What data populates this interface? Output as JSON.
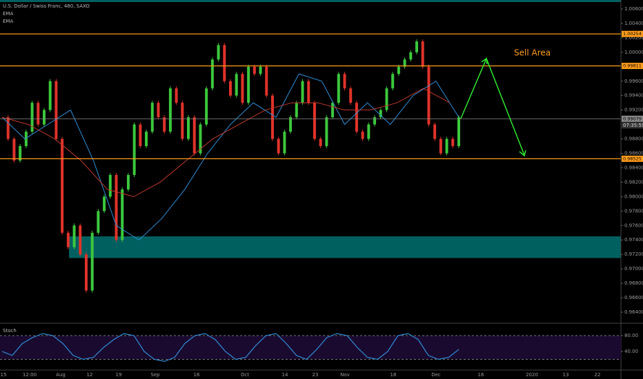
{
  "header": {
    "title": "U.S. Dollar / Swiss Franc, 480, SAXO",
    "indicators": [
      "EMA",
      "EMA"
    ]
  },
  "chart_data": [
    {
      "type": "candlestick",
      "annotation": "Sell Area",
      "ylim": [
        0.96257,
        1.00724
      ],
      "yticks": [
        {
          "value": 1.006,
          "label": "1.00600"
        },
        {
          "value": 1.004,
          "label": "1.00400"
        },
        {
          "value": 1.002,
          "label": "1.00200"
        },
        {
          "value": 1.0,
          "label": "1.00000"
        },
        {
          "value": 0.996,
          "label": "0.99600"
        },
        {
          "value": 0.994,
          "label": "0.99400"
        },
        {
          "value": 0.992,
          "label": "0.99200"
        },
        {
          "value": 0.988,
          "label": "0.98800"
        },
        {
          "value": 0.986,
          "label": "0.98600"
        },
        {
          "value": 0.984,
          "label": "0.98400"
        },
        {
          "value": 0.982,
          "label": "0.98200"
        },
        {
          "value": 0.98,
          "label": "0.98000"
        },
        {
          "value": 0.978,
          "label": "0.97800"
        },
        {
          "value": 0.976,
          "label": "0.97600"
        },
        {
          "value": 0.974,
          "label": "0.97400"
        },
        {
          "value": 0.972,
          "label": "0.97200"
        },
        {
          "value": 0.97,
          "label": "0.97000"
        },
        {
          "value": 0.968,
          "label": "0.96800"
        },
        {
          "value": 0.966,
          "label": "0.96600"
        },
        {
          "value": 0.964,
          "label": "0.96400"
        }
      ],
      "x_labels": [
        "15",
        "12:00",
        "Aug",
        "12",
        "19",
        "Sep",
        "16",
        "Oct",
        "14",
        "23",
        "Nov",
        "18",
        "Dec",
        "16",
        "2020",
        "13",
        "22"
      ],
      "closes": [
        0.991,
        0.988,
        0.985,
        0.987,
        0.989,
        0.993,
        0.99,
        0.992,
        0.996,
        0.988,
        0.975,
        0.973,
        0.976,
        0.972,
        0.967,
        0.975,
        0.978,
        0.98,
        0.983,
        0.974,
        0.981,
        0.983,
        0.99,
        0.987,
        0.989,
        0.993,
        0.991,
        0.989,
        0.995,
        0.993,
        0.988,
        0.991,
        0.986,
        0.99,
        0.995,
        0.999,
        1.001,
        0.996,
        0.994,
        0.997,
        0.993,
        0.998,
        0.997,
        0.998,
        0.994,
        0.988,
        0.986,
        0.989,
        0.991,
        0.993,
        0.996,
        0.993,
        0.988,
        0.987,
        0.991,
        0.993,
        0.997,
        0.995,
        0.993,
        0.989,
        0.988,
        0.99,
        0.991,
        0.992,
        0.995,
        0.997,
        0.998,
        0.999,
        1.0,
        1.0015,
        0.998,
        0.99,
        0.988,
        0.986,
        0.988,
        0.987,
        0.991
      ],
      "colors": {
        "up": "#26a69a",
        "down": "#ef5350",
        "bull": "#3cc83c",
        "bear": "#e0332a"
      },
      "ema_series": [
        {
          "color": "#2f8fd8",
          "values": [
            0.991,
            0.988,
            0.99,
            0.992,
            0.985,
            0.976,
            0.974,
            0.977,
            0.981,
            0.986,
            0.99,
            0.993,
            0.991,
            0.997,
            0.996,
            0.99,
            0.993,
            0.99,
            0.994,
            0.996,
            0.991
          ]
        },
        {
          "color": "#c0392b",
          "values": [
            0.991,
            0.99,
            0.988,
            0.985,
            0.981,
            0.98,
            0.982,
            0.985,
            0.988,
            0.99,
            0.992,
            0.993,
            0.993,
            0.992,
            0.992,
            0.993,
            0.995,
            0.993
          ]
        }
      ],
      "levels": [
        {
          "value": 1.00254,
          "label": "1.00254",
          "color": "#ff9c1a"
        },
        {
          "value": 0.99811,
          "label": "0.99811",
          "color": "#ff9c1a"
        },
        {
          "value": 0.98525,
          "label": "0.98525",
          "color": "#ff9c1a"
        },
        {
          "value": 0.99079,
          "label": "0.99079",
          "color": "#888888"
        }
      ],
      "countdown": "07:35:59",
      "zone": [
        0.9745,
        0.9715
      ],
      "zone_color": "#006060"
    },
    {
      "type": "line",
      "title": "Stoch",
      "ylim": [
        0,
        100
      ],
      "yticks": [
        {
          "value": 80,
          "label": "80.00"
        },
        {
          "value": 40,
          "label": "40.00"
        }
      ],
      "bands": [
        20,
        80
      ],
      "series": [
        {
          "color": "#2f8fd8",
          "values": [
            40,
            30,
            60,
            75,
            85,
            80,
            60,
            30,
            20,
            25,
            50,
            70,
            85,
            80,
            40,
            20,
            15,
            25,
            60,
            80,
            85,
            70,
            40,
            20,
            25,
            55,
            80,
            85,
            60,
            30,
            20,
            45,
            75,
            85,
            80,
            50,
            25,
            20,
            40,
            80,
            85,
            70,
            30,
            20,
            25,
            45
          ]
        }
      ]
    }
  ]
}
